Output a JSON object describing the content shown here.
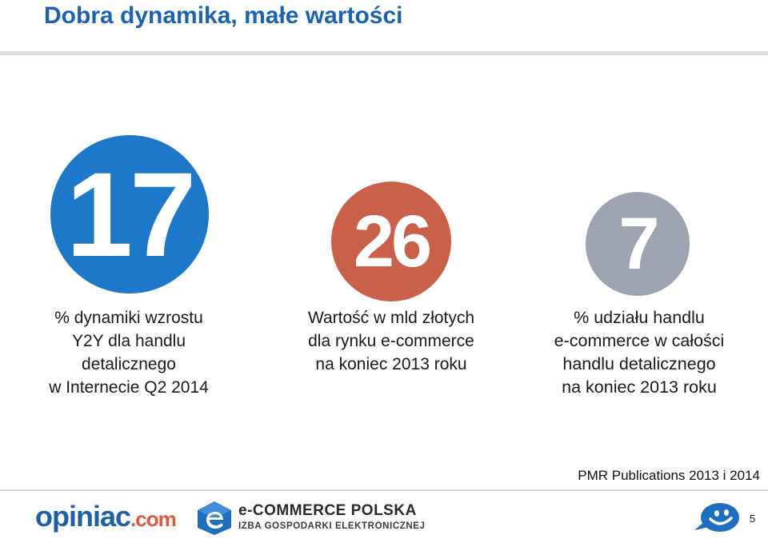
{
  "slide": {
    "title": "Dobra dynamika, małe wartości",
    "page_number": "5"
  },
  "stats": [
    {
      "value": "17",
      "color": "#1e78c9",
      "caption": [
        "% dynamiki wzrostu",
        "Y2Y dla handlu",
        "detalicznego",
        "w Internecie Q2 2014"
      ]
    },
    {
      "value": "26",
      "color": "#c9604a",
      "caption": [
        "Wartość w mld złotych",
        "dla rynku e-commerce",
        "na koniec 2013 roku"
      ]
    },
    {
      "value": "7",
      "color": "#9ea3b1",
      "caption": [
        "% udziału handlu",
        "e-commerce w całości",
        "handlu detalicznego",
        "na koniec 2013 roku"
      ]
    }
  ],
  "source": "PMR Publications 2013 i 2014",
  "footer": {
    "opiniac_main": "opiniac",
    "opiniac_com": ".com",
    "ecommerce_title": "e-COMMERCE POLSKA",
    "ecommerce_sub": "IZBA GOSPODARKI ELEKTRONICZNEJ",
    "smile_icon": "smiley-speech-bubble-icon"
  }
}
